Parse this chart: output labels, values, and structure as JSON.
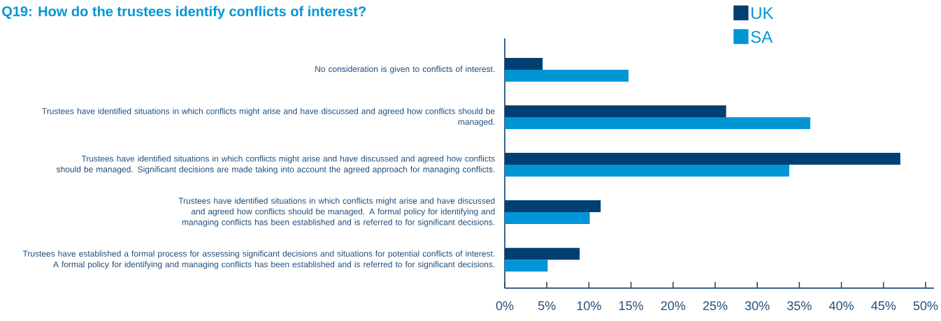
{
  "chart_data": {
    "type": "bar",
    "orientation": "horizontal",
    "title": "Q19: How do the trustees identify conflicts of interest?",
    "categories": [
      "No consideration is given to conflicts of interest.",
      "Trustees have identified situations in which conflicts might arise and have discussed and agreed how conflicts should be managed.",
      "Trustees have identified situations in which conflicts might arise and have discussed and agreed how conflicts should be managed. Significant decisions are made taking into account the agreed approach for managing conflicts.",
      "Trustees have identified situations in which conflicts might arise and have discussed and agreed how conflicts should be managed. A formal policy for identifying and managing conflicts has been established and is referred to for significant decisions.",
      "Trustees have established a formal process for assessing significant decisions and situations for potential conflicts of interest. A formal policy for identifying and managing conflicts has been established and is referred to for significant decisions."
    ],
    "series": [
      {
        "name": "UK",
        "color": "#003f72",
        "values": [
          4.5,
          26.3,
          47.0,
          11.4,
          8.9
        ]
      },
      {
        "name": "SA",
        "color": "#0096d6",
        "values": [
          14.7,
          36.3,
          33.8,
          10.1,
          5.1
        ]
      }
    ],
    "xlim": [
      0,
      51
    ],
    "xticks": [
      {
        "value": 0,
        "label": "0%"
      },
      {
        "value": 5,
        "label": "5%"
      },
      {
        "value": 10,
        "label": "10%"
      },
      {
        "value": 15,
        "label": "15%"
      },
      {
        "value": 20,
        "label": "20%"
      },
      {
        "value": 25,
        "label": "25%"
      },
      {
        "value": 30,
        "label": "30%"
      },
      {
        "value": 35,
        "label": "35%"
      },
      {
        "value": 40,
        "label": "40%"
      },
      {
        "value": 45,
        "label": "45%"
      },
      {
        "value": 50,
        "label": "50%"
      }
    ],
    "grid": false,
    "legend": "top right"
  }
}
